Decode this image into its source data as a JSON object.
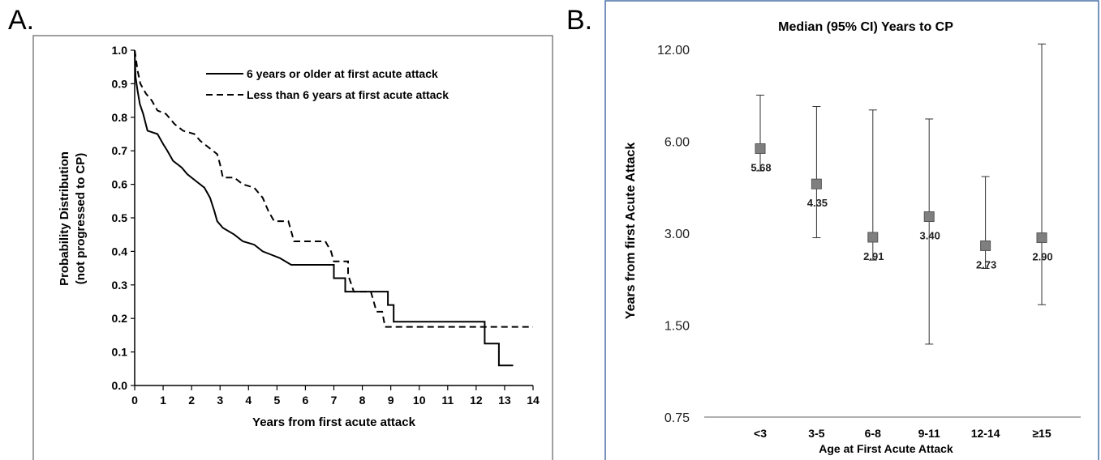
{
  "panels": {
    "a": "A.",
    "b": "B."
  },
  "chart_data": [
    {
      "type": "line",
      "xlabel": "Years from first acute attack",
      "ylabel": [
        "Probability Distribution",
        "(not progressed to CP)"
      ],
      "xlim": [
        0,
        14
      ],
      "ylim": [
        0,
        1
      ],
      "xticks": [
        "0",
        "1",
        "2",
        "3",
        "4",
        "5",
        "6",
        "7",
        "8",
        "9",
        "10",
        "11",
        "12",
        "13",
        "14"
      ],
      "yticks": [
        "0.0",
        "0.1",
        "0.2",
        "0.3",
        "0.4",
        "0.5",
        "0.6",
        "0.7",
        "0.8",
        "0.9",
        "1.0"
      ],
      "legend_position": "top-right",
      "series": [
        {
          "name": "6 years or older at first acute attack",
          "style": "solid",
          "points": [
            [
              0,
              1.0
            ],
            [
              0.03,
              0.92
            ],
            [
              0.1,
              0.88
            ],
            [
              0.18,
              0.84
            ],
            [
              0.3,
              0.81
            ],
            [
              0.45,
              0.76
            ],
            [
              0.8,
              0.75
            ],
            [
              1.0,
              0.72
            ],
            [
              1.15,
              0.7
            ],
            [
              1.35,
              0.67
            ],
            [
              1.65,
              0.65
            ],
            [
              1.85,
              0.63
            ],
            [
              2.15,
              0.61
            ],
            [
              2.45,
              0.59
            ],
            [
              2.65,
              0.56
            ],
            [
              2.8,
              0.52
            ],
            [
              2.9,
              0.49
            ],
            [
              3.1,
              0.47
            ],
            [
              3.5,
              0.45
            ],
            [
              3.8,
              0.43
            ],
            [
              4.2,
              0.42
            ],
            [
              4.5,
              0.4
            ],
            [
              4.8,
              0.39
            ],
            [
              5.1,
              0.38
            ],
            [
              5.5,
              0.36
            ],
            [
              6.2,
              0.36
            ],
            [
              7.0,
              0.36
            ],
            [
              7.0,
              0.32
            ],
            [
              7.4,
              0.32
            ],
            [
              7.4,
              0.28
            ],
            [
              8.0,
              0.28
            ],
            [
              8.9,
              0.28
            ],
            [
              8.9,
              0.24
            ],
            [
              9.1,
              0.24
            ],
            [
              9.1,
              0.19
            ],
            [
              10.0,
              0.19
            ],
            [
              12.3,
              0.19
            ],
            [
              12.3,
              0.125
            ],
            [
              12.8,
              0.125
            ],
            [
              12.8,
              0.06
            ],
            [
              13.3,
              0.06
            ]
          ]
        },
        {
          "name": "Less than 6 years at first acute attack",
          "style": "dashed",
          "points": [
            [
              0,
              1.0
            ],
            [
              0.05,
              0.97
            ],
            [
              0.1,
              0.94
            ],
            [
              0.2,
              0.9
            ],
            [
              0.4,
              0.87
            ],
            [
              0.6,
              0.85
            ],
            [
              0.8,
              0.82
            ],
            [
              1.1,
              0.81
            ],
            [
              1.4,
              0.78
            ],
            [
              1.7,
              0.76
            ],
            [
              2.1,
              0.75
            ],
            [
              2.3,
              0.73
            ],
            [
              2.6,
              0.71
            ],
            [
              2.9,
              0.69
            ],
            [
              3.0,
              0.66
            ],
            [
              3.1,
              0.62
            ],
            [
              3.5,
              0.62
            ],
            [
              3.8,
              0.6
            ],
            [
              4.2,
              0.59
            ],
            [
              4.5,
              0.56
            ],
            [
              4.7,
              0.52
            ],
            [
              4.9,
              0.49
            ],
            [
              5.4,
              0.49
            ],
            [
              5.6,
              0.43
            ],
            [
              6.2,
              0.43
            ],
            [
              6.7,
              0.43
            ],
            [
              6.9,
              0.4
            ],
            [
              7.0,
              0.37
            ],
            [
              7.5,
              0.37
            ],
            [
              7.5,
              0.33
            ],
            [
              7.7,
              0.28
            ],
            [
              8.3,
              0.28
            ],
            [
              8.5,
              0.22
            ],
            [
              8.7,
              0.22
            ],
            [
              8.8,
              0.175
            ],
            [
              10.0,
              0.175
            ],
            [
              12.3,
              0.175
            ],
            [
              14.0,
              0.175
            ]
          ]
        }
      ]
    },
    {
      "type": "scatter",
      "title": "Median (95% CI) Years to CP",
      "xlabel": "Age at First Acute Attack",
      "ylabel": "Years from first Acute Attack",
      "y_scale": "log",
      "yticks": [
        0.75,
        1.5,
        3.0,
        6.0,
        12.0
      ],
      "ytick_labels": [
        "0.75",
        "1.50",
        "3.00",
        "6.00",
        "12.00"
      ],
      "ylim": [
        0.75,
        12.0
      ],
      "categories": [
        "<3",
        "3-5",
        "6-8",
        "9-11",
        "12-14",
        "≥15"
      ],
      "medians": [
        5.68,
        4.35,
        2.91,
        3.4,
        2.73,
        2.9
      ],
      "value_labels": [
        "5.68",
        "4.35",
        "2.91",
        "3.40",
        "2.73",
        "2.90"
      ],
      "ci_lower": [
        4.8,
        2.9,
        2.45,
        1.3,
        2.3,
        1.75
      ],
      "ci_upper": [
        8.5,
        7.8,
        7.6,
        7.1,
        4.6,
        12.5
      ]
    }
  ],
  "colors": {
    "marker": "#7f7f7f",
    "line": "#000000",
    "frame_b": "#4a6fa5",
    "axis": "#808080"
  }
}
